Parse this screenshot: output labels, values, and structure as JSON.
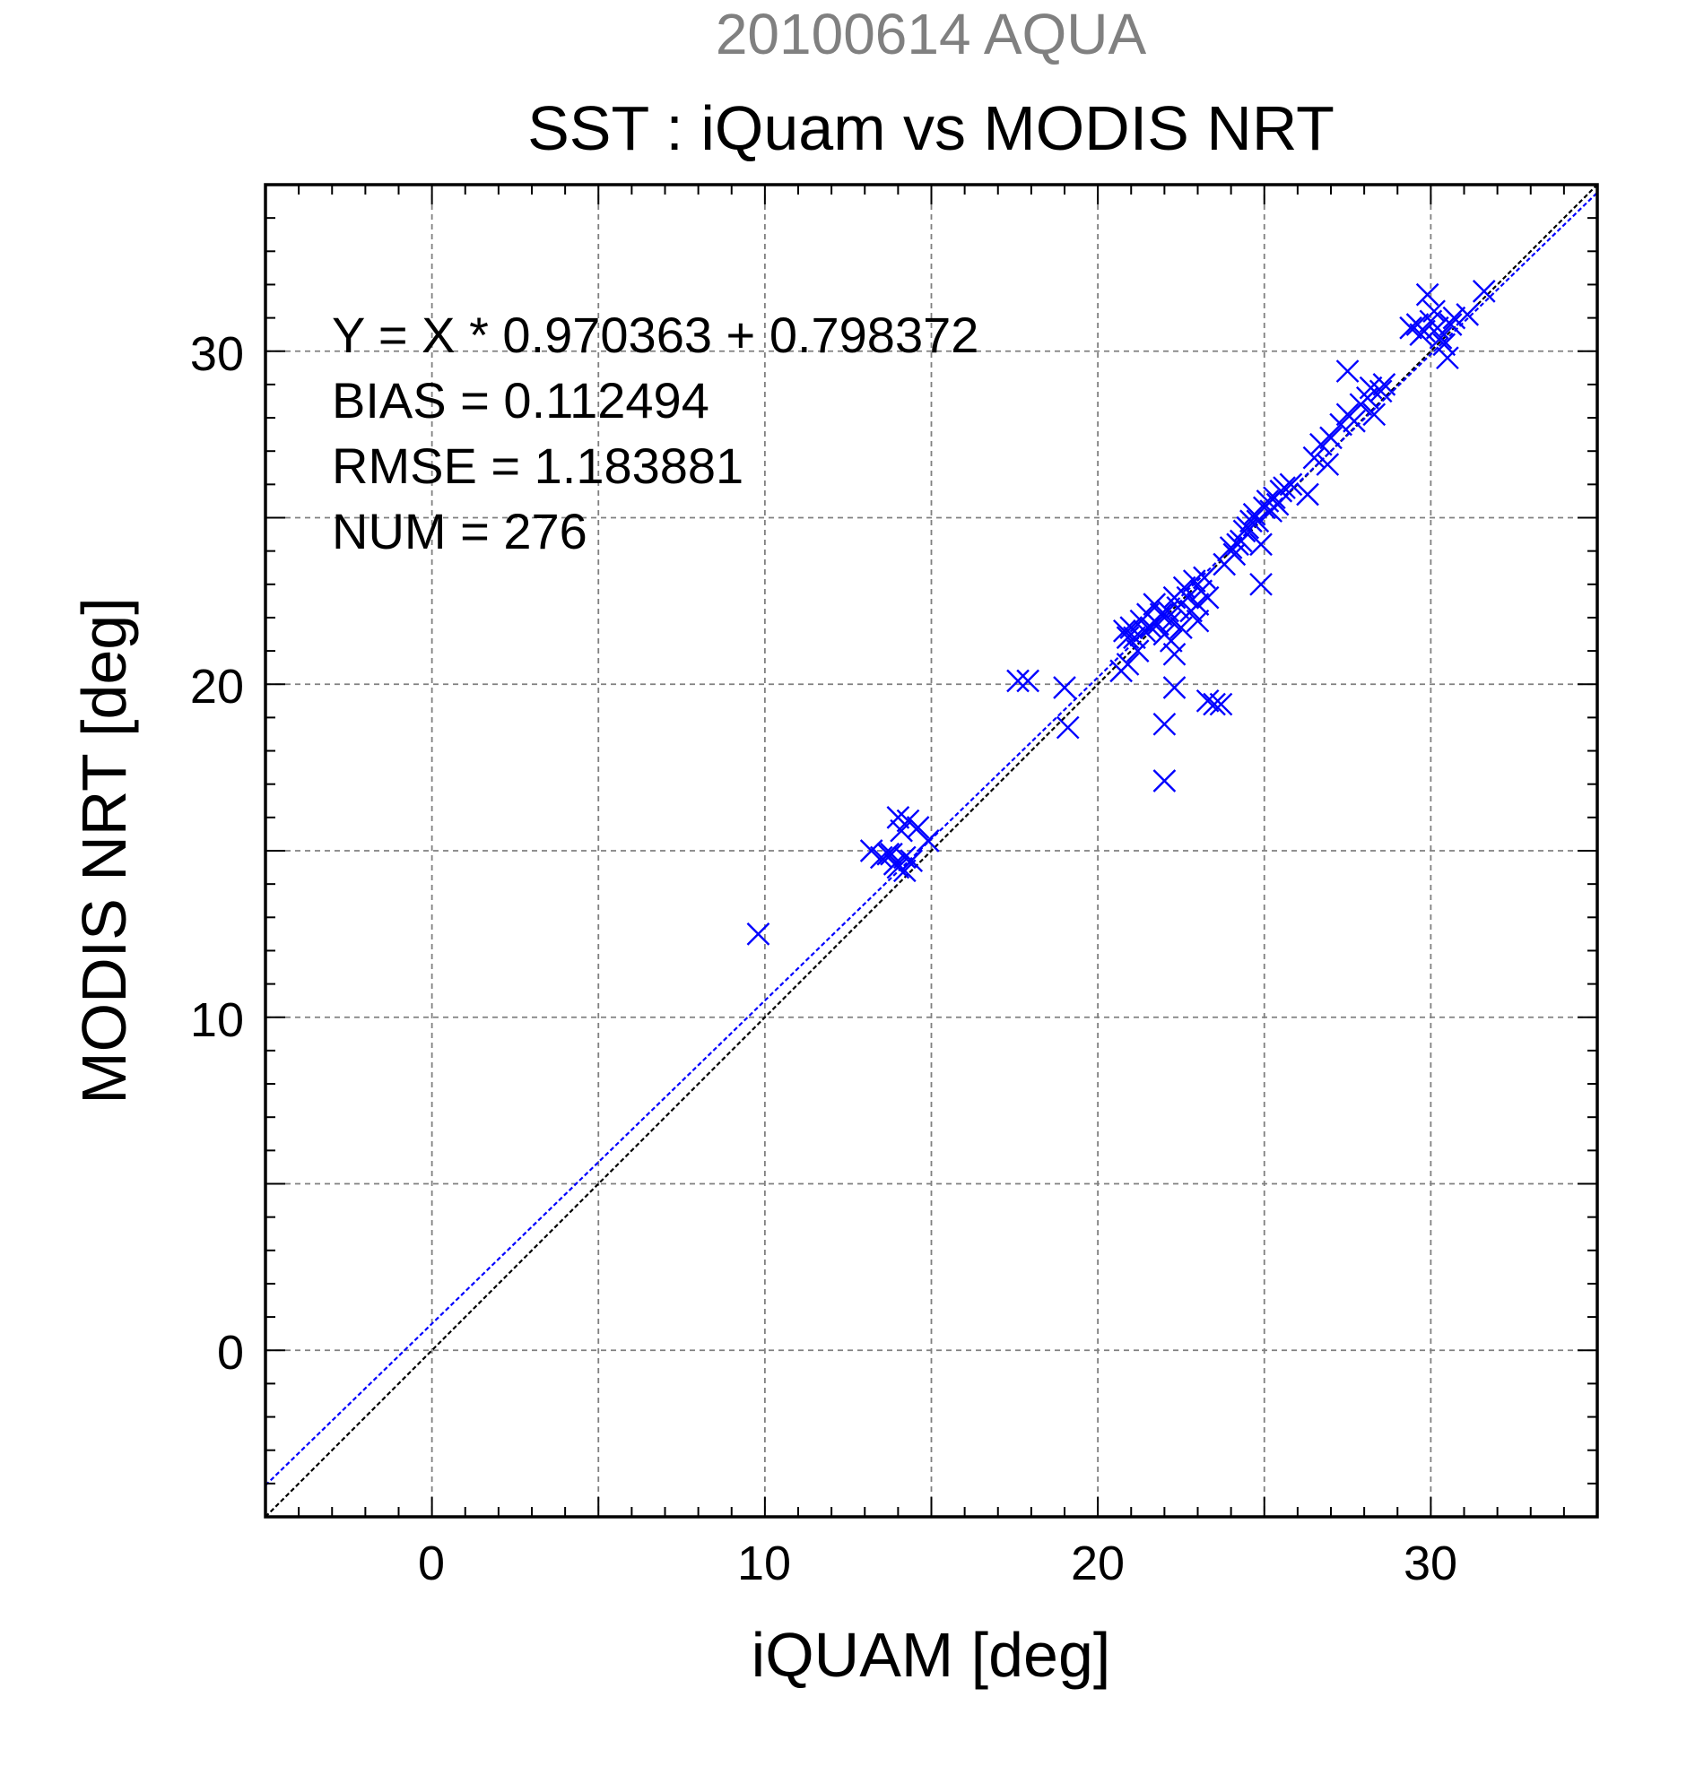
{
  "chart_data": {
    "type": "scatter",
    "supertitle": "20100614 AQUA",
    "title": "SST : iQuam vs MODIS NRT",
    "xlabel": "iQUAM [deg]",
    "ylabel": "MODIS NRT [deg]",
    "xlim": [
      -5,
      35
    ],
    "ylim": [
      -5,
      35
    ],
    "xticks": [
      "0",
      "10",
      "20",
      "30"
    ],
    "yticks": [
      "0",
      "10",
      "20",
      "30"
    ],
    "grid": true,
    "colors": {
      "points": "#0000ff",
      "fit_line": "#0000ff",
      "identity_line": "#000000",
      "supertitle": "#808080"
    },
    "stats": [
      "Y = X * 0.970363 + 0.798372",
      "BIAS = 0.112494",
      "RMSE = 1.183881",
      "NUM = 276"
    ],
    "fit": {
      "slope": 0.970363,
      "intercept": 0.798372
    },
    "identity": {
      "slope": 1,
      "intercept": 0
    },
    "marker": "x",
    "points": [
      [
        9.8,
        12.5
      ],
      [
        13.2,
        15.0
      ],
      [
        13.5,
        14.8
      ],
      [
        13.7,
        14.9
      ],
      [
        13.9,
        14.6
      ],
      [
        14.0,
        16.0
      ],
      [
        14.1,
        15.6
      ],
      [
        14.2,
        14.4
      ],
      [
        14.3,
        15.9
      ],
      [
        14.4,
        14.7
      ],
      [
        14.6,
        15.7
      ],
      [
        14.9,
        15.3
      ],
      [
        13.8,
        14.9
      ],
      [
        14.0,
        14.5
      ],
      [
        14.2,
        14.8
      ],
      [
        17.6,
        20.1
      ],
      [
        17.9,
        20.1
      ],
      [
        19.0,
        19.9
      ],
      [
        19.1,
        18.7
      ],
      [
        20.7,
        20.4
      ],
      [
        20.8,
        21.6
      ],
      [
        20.9,
        21.4
      ],
      [
        20.9,
        20.6
      ],
      [
        21.0,
        21.7
      ],
      [
        21.1,
        21.4
      ],
      [
        21.2,
        21.0
      ],
      [
        21.3,
        21.9
      ],
      [
        21.4,
        21.6
      ],
      [
        21.5,
        22.1
      ],
      [
        21.6,
        21.7
      ],
      [
        21.7,
        22.4
      ],
      [
        21.8,
        21.8
      ],
      [
        21.9,
        22.1
      ],
      [
        22.0,
        21.5
      ],
      [
        22.0,
        18.8
      ],
      [
        22.0,
        17.1
      ],
      [
        22.1,
        22.2
      ],
      [
        22.2,
        21.9
      ],
      [
        22.2,
        21.3
      ],
      [
        22.3,
        20.9
      ],
      [
        22.3,
        19.9
      ],
      [
        22.3,
        22.6
      ],
      [
        22.4,
        22.3
      ],
      [
        22.5,
        21.7
      ],
      [
        22.6,
        22.9
      ],
      [
        22.7,
        22.6
      ],
      [
        22.8,
        22.2
      ],
      [
        22.9,
        23.1
      ],
      [
        23.0,
        22.4
      ],
      [
        23.0,
        21.9
      ],
      [
        23.1,
        22.8
      ],
      [
        23.2,
        23.2
      ],
      [
        23.3,
        22.6
      ],
      [
        23.3,
        19.5
      ],
      [
        23.5,
        19.4
      ],
      [
        23.7,
        19.4
      ],
      [
        23.8,
        23.6
      ],
      [
        24.0,
        24.1
      ],
      [
        24.1,
        23.9
      ],
      [
        24.2,
        24.2
      ],
      [
        24.3,
        24.3
      ],
      [
        24.4,
        24.6
      ],
      [
        24.5,
        24.7
      ],
      [
        24.6,
        24.9
      ],
      [
        24.7,
        25.1
      ],
      [
        24.8,
        24.9
      ],
      [
        24.9,
        24.2
      ],
      [
        24.9,
        23.0
      ],
      [
        25.0,
        25.3
      ],
      [
        25.1,
        25.5
      ],
      [
        25.2,
        25.2
      ],
      [
        25.3,
        25.6
      ],
      [
        25.4,
        25.4
      ],
      [
        25.5,
        25.8
      ],
      [
        25.6,
        25.9
      ],
      [
        25.8,
        26.0
      ],
      [
        26.3,
        25.7
      ],
      [
        26.5,
        26.8
      ],
      [
        26.7,
        27.2
      ],
      [
        26.9,
        26.6
      ],
      [
        27.0,
        27.4
      ],
      [
        27.3,
        27.8
      ],
      [
        27.5,
        28.1
      ],
      [
        27.5,
        29.4
      ],
      [
        27.7,
        27.9
      ],
      [
        27.9,
        28.4
      ],
      [
        28.1,
        28.6
      ],
      [
        28.2,
        28.9
      ],
      [
        28.3,
        28.1
      ],
      [
        28.5,
        28.8
      ],
      [
        28.6,
        29.0
      ],
      [
        29.4,
        30.7
      ],
      [
        29.6,
        30.8
      ],
      [
        29.7,
        30.5
      ],
      [
        29.8,
        30.6
      ],
      [
        29.9,
        31.7
      ],
      [
        30.0,
        30.9
      ],
      [
        30.1,
        31.2
      ],
      [
        30.2,
        30.7
      ],
      [
        30.3,
        30.4
      ],
      [
        30.4,
        30.2
      ],
      [
        30.5,
        29.8
      ],
      [
        30.6,
        30.8
      ],
      [
        30.7,
        31.0
      ],
      [
        31.1,
        31.1
      ],
      [
        31.6,
        31.8
      ]
    ]
  }
}
